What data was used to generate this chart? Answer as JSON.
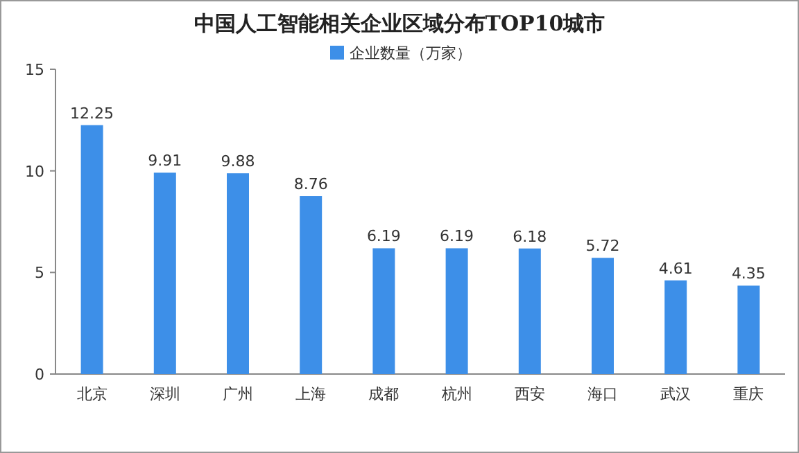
{
  "chart_data": {
    "type": "bar",
    "title": "中国人工智能相关企业区域分布TOP10城市",
    "categories": [
      "北京",
      "深圳",
      "广州",
      "上海",
      "成都",
      "杭州",
      "西安",
      "海口",
      "武汉",
      "重庆"
    ],
    "series": [
      {
        "name": "企业数量（万家）",
        "color": "#3d8fe8",
        "values": [
          12.25,
          9.91,
          9.88,
          8.76,
          6.19,
          6.19,
          6.18,
          5.72,
          4.61,
          4.35
        ]
      }
    ],
    "ylim": [
      0,
      15
    ],
    "yticks": [
      0,
      5,
      10,
      15
    ],
    "legend": "top",
    "data_labels": true,
    "grid": false
  }
}
